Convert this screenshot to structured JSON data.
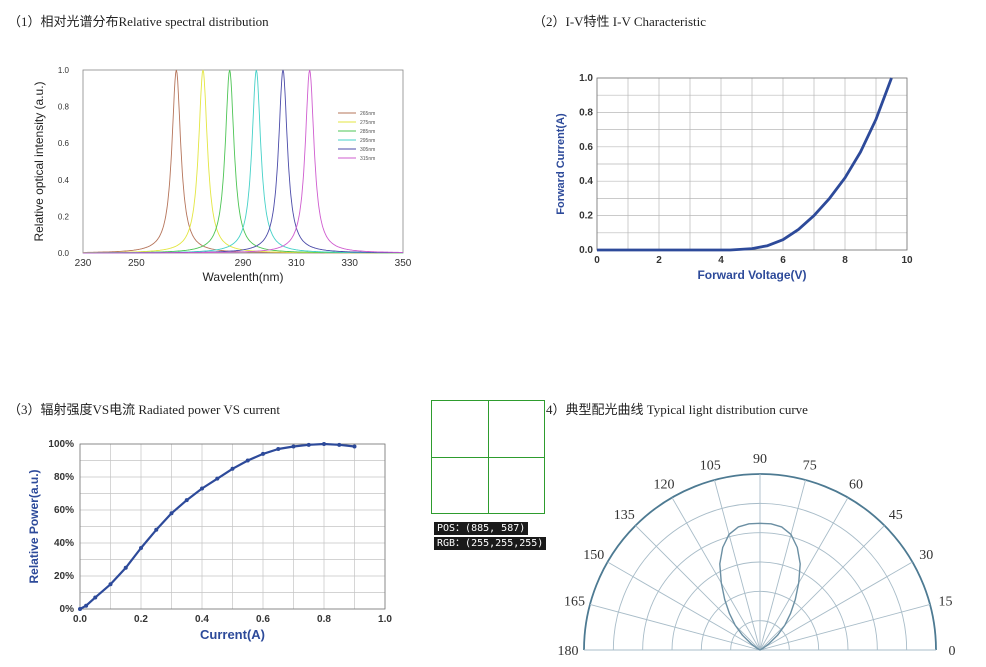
{
  "captions": {
    "spectrum": "（1）相对光谱分布Relative spectral distribution",
    "iv": "（2）I-V特性 I-V Characteristic",
    "power": "（3）辐射强度VS电流 Radiated power VS current",
    "light": "4）典型配光曲线 Typical light distribution curve"
  },
  "inspector": {
    "pos": "POS：(885, 587)",
    "rgb": "RGB：(255,255,255)"
  },
  "chart_data": [
    {
      "type": "line",
      "xlabel": "Wavelenth(nm)",
      "ylabel": "Relative optical intensity   (a.u.)",
      "xlim": [
        230,
        350
      ],
      "ylim": [
        0,
        1.0
      ],
      "xticks": [
        230,
        250,
        270,
        290,
        310,
        330,
        350
      ],
      "xtick_labels": [
        "230",
        "250",
        "",
        "290",
        "310",
        "330",
        "350"
      ],
      "yticks": [
        "0.0",
        "0.2",
        "0.4",
        "0.6",
        "0.8",
        "1.0"
      ],
      "ytick_values": [
        0,
        0.2,
        0.4,
        0.6,
        0.8,
        1.0
      ],
      "grid": false,
      "legend": "top-right",
      "series": [
        {
          "name": "265nm",
          "peak": 265,
          "color": "#b5745a"
        },
        {
          "name": "275nm",
          "peak": 275,
          "color": "#e3e640"
        },
        {
          "name": "285nm",
          "peak": 285,
          "color": "#4cc454"
        },
        {
          "name": "295nm",
          "peak": 295,
          "color": "#45d1c8"
        },
        {
          "name": "305nm",
          "peak": 305,
          "color": "#4a4aa8"
        },
        {
          "name": "315nm",
          "peak": 315,
          "color": "#cf5ccf"
        }
      ]
    },
    {
      "type": "line",
      "xlabel": "Forward Voltage(V)",
      "ylabel": "Forward Current(A)",
      "xlim": [
        0,
        10
      ],
      "ylim": [
        0,
        1.0
      ],
      "xticks": [
        "0",
        "2",
        "4",
        "6",
        "8",
        "10"
      ],
      "xtick_values": [
        0,
        2,
        4,
        6,
        8,
        10
      ],
      "yticks": [
        "0.0",
        "0.2",
        "0.4",
        "0.6",
        "0.8",
        "1.0"
      ],
      "ytick_values": [
        0,
        0.2,
        0.4,
        0.6,
        0.8,
        1.0
      ],
      "grid": true,
      "series": [
        {
          "color": "#2d4a9a",
          "x": [
            0,
            4.3,
            5,
            5.5,
            6,
            6.5,
            7,
            7.5,
            8,
            8.5,
            9,
            9.5
          ],
          "y": [
            0,
            0,
            0.008,
            0.025,
            0.06,
            0.12,
            0.2,
            0.3,
            0.42,
            0.57,
            0.76,
            1.0
          ]
        }
      ]
    },
    {
      "type": "line",
      "xlabel": "Current(A)",
      "ylabel": "Relative Power(a.u.)",
      "xlim": [
        0,
        1.0
      ],
      "ylim": [
        0,
        100
      ],
      "xticks": [
        "0.0",
        "0.2",
        "0.4",
        "0.6",
        "0.8",
        "1.0"
      ],
      "xtick_values": [
        0,
        0.2,
        0.4,
        0.6,
        0.8,
        1.0
      ],
      "yticks": [
        "0%",
        "20%",
        "40%",
        "60%",
        "80%",
        "100%"
      ],
      "ytick_values": [
        0,
        20,
        40,
        60,
        80,
        100
      ],
      "grid": true,
      "series": [
        {
          "color": "#2d4a9a",
          "x": [
            0,
            0.02,
            0.05,
            0.1,
            0.15,
            0.2,
            0.25,
            0.3,
            0.35,
            0.4,
            0.45,
            0.5,
            0.55,
            0.6,
            0.65,
            0.7,
            0.75,
            0.8,
            0.85,
            0.9
          ],
          "y": [
            0,
            2,
            7,
            15,
            25,
            37,
            48,
            58,
            66,
            73,
            79,
            85,
            90,
            94,
            97,
            98.5,
            99.5,
            100,
            99.5,
            98.5
          ]
        }
      ]
    },
    {
      "type": "polar",
      "angle_labels": [
        "0",
        "15",
        "30",
        "45",
        "60",
        "75",
        "90",
        "105",
        "120",
        "135",
        "150",
        "165",
        "180"
      ],
      "angles": [
        0,
        15,
        30,
        45,
        60,
        75,
        90,
        105,
        120,
        135,
        150,
        165,
        180
      ],
      "rings": 6,
      "series": [
        {
          "color": "#6b8fa3",
          "angles": [
            0,
            5,
            10,
            15,
            20,
            25,
            30,
            35,
            40,
            45,
            50,
            55,
            60,
            65,
            70,
            75,
            80,
            85,
            90,
            95,
            100,
            105,
            110,
            115,
            120,
            125,
            130,
            135,
            140,
            145,
            150,
            155,
            160,
            165,
            170,
            175,
            180
          ],
          "r": [
            0,
            0,
            0,
            0,
            0,
            0,
            0.02,
            0.06,
            0.13,
            0.2,
            0.27,
            0.35,
            0.44,
            0.54,
            0.62,
            0.68,
            0.71,
            0.72,
            0.72,
            0.72,
            0.71,
            0.68,
            0.62,
            0.54,
            0.44,
            0.35,
            0.27,
            0.2,
            0.13,
            0.06,
            0.02,
            0,
            0,
            0,
            0,
            0,
            0
          ]
        }
      ]
    }
  ]
}
